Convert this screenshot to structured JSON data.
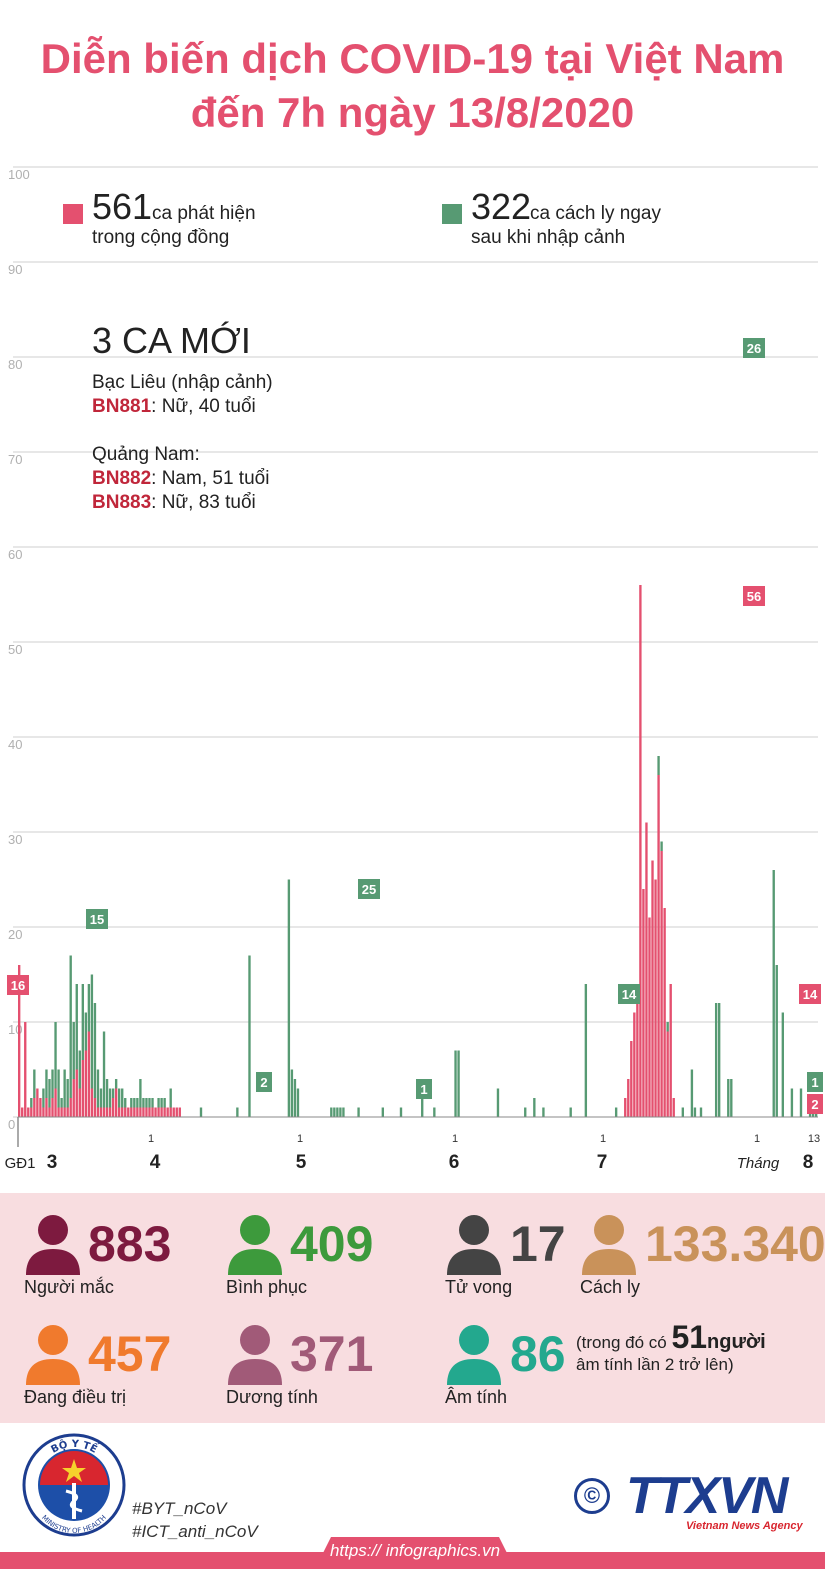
{
  "title_line1": "Diễn biến dịch COVID-19 tại Việt Nam",
  "title_line2": "đến 7h ngày 13/8/2020",
  "colors": {
    "community": "#e4506f",
    "quarantine": "#579a73",
    "accent": "#e4506f",
    "dark_red": "#c0263a"
  },
  "legend": {
    "community": {
      "value": "561",
      "text1": "ca phát hiện",
      "text2": "trong cộng đồng"
    },
    "quarantine": {
      "value": "322",
      "text1": "ca cách ly ngay",
      "text2": "sau khi nhập cảnh"
    }
  },
  "new_cases": {
    "title": "3 CA MỚI",
    "group1": "Bạc Liêu (nhập cảnh)",
    "case1_id": "BN881",
    "case1_desc": ": Nữ, 40 tuổi",
    "group2": "Quảng Nam:",
    "case2_id": "BN882",
    "case2_desc": ": Nam, 51 tuổi",
    "case3_id": "BN883",
    "case3_desc": ": Nữ, 83 tuổi"
  },
  "chart_data": {
    "type": "bar",
    "stacked": true,
    "ylim": [
      0,
      100
    ],
    "yticks": [
      0,
      10,
      20,
      30,
      40,
      50,
      60,
      70,
      80,
      90,
      100
    ],
    "grid": true,
    "series": [
      {
        "name": "ca phát hiện trong cộng đồng",
        "color": "#e4506f",
        "values": [
          16,
          1,
          10,
          1,
          1,
          2,
          3,
          2,
          1,
          2,
          1,
          2,
          3,
          1,
          1,
          1,
          1,
          2,
          4,
          5,
          3,
          6,
          7,
          9,
          3,
          2,
          1,
          1,
          1,
          1,
          1,
          2,
          3,
          1,
          1,
          1,
          1,
          1,
          1,
          1,
          1,
          1,
          1,
          1,
          1,
          1,
          1,
          1,
          1,
          1,
          1,
          1,
          1,
          1,
          0,
          0,
          0,
          0,
          0,
          0,
          0,
          0,
          0,
          0,
          0,
          0,
          0,
          0,
          0,
          0,
          0,
          0,
          0,
          0,
          0,
          0,
          0,
          0,
          0,
          0,
          0,
          0,
          0,
          0,
          0,
          0,
          0,
          0,
          0,
          0,
          0,
          0,
          0,
          0,
          0,
          0,
          0,
          0,
          0,
          0,
          0,
          0,
          0,
          0,
          0,
          0,
          0,
          0,
          0,
          0,
          0,
          0,
          0,
          0,
          0,
          0,
          0,
          0,
          0,
          0,
          0,
          0,
          0,
          0,
          0,
          0,
          0,
          0,
          0,
          0,
          0,
          0,
          0,
          0,
          0,
          0,
          0,
          0,
          0,
          0,
          0,
          0,
          0,
          0,
          0,
          0,
          0,
          0,
          0,
          0,
          0,
          0,
          0,
          0,
          0,
          0,
          0,
          0,
          0,
          0,
          0,
          0,
          0,
          0,
          0,
          0,
          0,
          0,
          0,
          0,
          0,
          0,
          0,
          0,
          0,
          0,
          0,
          0,
          0,
          0,
          0,
          0,
          0,
          0,
          0,
          0,
          0,
          0,
          0,
          0,
          0,
          0,
          0,
          0,
          0,
          0,
          0,
          0,
          0,
          0,
          2,
          4,
          8,
          11,
          14,
          56,
          24,
          31,
          21,
          27,
          25,
          36,
          28,
          22,
          9,
          14,
          2
        ]
      },
      {
        "name": "ca cách ly ngay sau khi nhập cảnh",
        "color": "#579a73",
        "values": [
          0,
          0,
          0,
          0,
          1,
          3,
          0,
          0,
          2,
          3,
          3,
          3,
          7,
          4,
          1,
          4,
          3,
          15,
          6,
          9,
          4,
          8,
          4,
          5,
          12,
          10,
          4,
          2,
          8,
          3,
          2,
          1,
          1,
          2,
          2,
          1,
          0,
          1,
          1,
          1,
          3,
          1,
          1,
          1,
          1,
          0,
          1,
          1,
          1,
          0,
          2,
          0,
          0,
          0,
          0,
          0,
          0,
          0,
          0,
          0,
          1,
          0,
          0,
          0,
          0,
          0,
          0,
          0,
          0,
          0,
          0,
          0,
          1,
          0,
          0,
          0,
          17,
          0,
          0,
          0,
          0,
          0,
          0,
          0,
          0,
          0,
          0,
          0,
          0,
          25,
          5,
          4,
          3,
          0,
          0,
          0,
          0,
          0,
          0,
          0,
          0,
          0,
          0,
          1,
          1,
          1,
          1,
          1,
          0,
          0,
          0,
          0,
          1,
          0,
          0,
          0,
          0,
          0,
          0,
          0,
          1,
          0,
          0,
          0,
          0,
          0,
          1,
          0,
          0,
          0,
          0,
          0,
          0,
          3,
          0,
          0,
          0,
          1,
          0,
          0,
          0,
          0,
          0,
          0,
          7,
          7,
          0,
          0,
          0,
          0,
          0,
          0,
          0,
          0,
          0,
          0,
          0,
          0,
          3,
          0,
          0,
          0,
          0,
          0,
          0,
          0,
          0,
          1,
          0,
          0,
          2,
          0,
          0,
          1,
          0,
          0,
          0,
          0,
          0,
          0,
          0,
          0,
          1,
          0,
          0,
          0,
          0,
          14,
          0,
          0,
          0,
          0,
          0,
          0,
          0,
          0,
          0,
          1,
          0,
          0,
          0,
          0,
          0,
          0,
          0,
          0,
          0,
          0,
          0,
          0,
          0,
          2,
          1,
          0,
          1,
          0,
          0,
          0,
          0,
          1,
          0,
          0,
          5,
          1,
          0,
          1,
          0,
          0,
          0,
          0,
          12,
          12,
          0,
          0,
          4,
          4,
          0,
          0,
          0,
          0,
          0,
          0,
          0,
          0,
          0,
          0,
          0,
          0,
          0,
          26,
          16,
          0,
          11,
          0,
          0,
          3,
          0,
          0,
          3,
          0,
          0,
          2,
          2,
          1
        ]
      }
    ],
    "value_labels": [
      {
        "text": "16",
        "series": "community"
      },
      {
        "text": "15",
        "series": "quarantine"
      },
      {
        "text": "2",
        "series": "quarantine"
      },
      {
        "text": "25",
        "series": "quarantine"
      },
      {
        "text": "1",
        "series": "quarantine"
      },
      {
        "text": "14",
        "series": "quarantine"
      },
      {
        "text": "26",
        "series": "quarantine"
      },
      {
        "text": "56",
        "series": "community"
      },
      {
        "text": "14",
        "series": "community"
      },
      {
        "text": "1",
        "series": "quarantine"
      },
      {
        "text": "2",
        "series": "community"
      }
    ],
    "x_day_labels": [
      "1",
      "1",
      "1",
      "1",
      "1",
      "13"
    ],
    "x_month_labels": [
      "GĐ1",
      "3",
      "4",
      "5",
      "6",
      "7",
      "Tháng",
      "8"
    ]
  },
  "stats": [
    {
      "value": "883",
      "label": "Người mắc",
      "color": "#7d1a3f"
    },
    {
      "value": "409",
      "label": "Bình phục",
      "color": "#3d9a3c"
    },
    {
      "value": "17",
      "label": "Tử vong",
      "color": "#444444"
    },
    {
      "value": "133.340",
      "label": "Cách ly",
      "color": "#c9925a"
    },
    {
      "value": "457",
      "label": "Đang điều trị",
      "color": "#f07a2d"
    },
    {
      "value": "371",
      "label": "Dương tính",
      "color": "#a15a78"
    },
    {
      "value": "86",
      "label": "Âm tính",
      "color": "#23a88e"
    }
  ],
  "negative_note": {
    "prefix": "(trong đó có",
    "number": "51",
    "suffix": "người",
    "line2": "âm tính lần 2 trở lên)"
  },
  "footer": {
    "logo_top": "BỘ Y TẾ",
    "logo_bottom": "MINISTRY OF HEALTH",
    "tag1": "#BYT_nCoV",
    "tag2": "#ICT_anti_nCoV",
    "copyright": "©",
    "agency": "TTXVN",
    "agency_sub": "Vietnam News Agency",
    "url": "https:// infographics.vn"
  }
}
